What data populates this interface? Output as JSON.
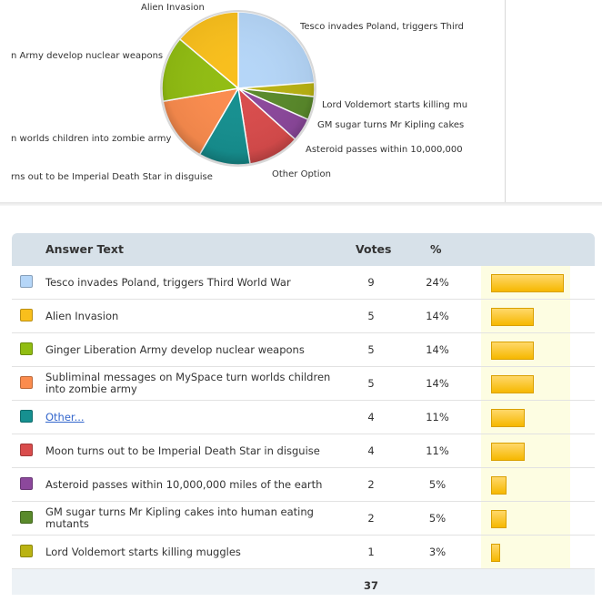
{
  "chart_data": {
    "type": "pie",
    "slices": [
      {
        "label": "Tesco invades Poland, triggers Third",
        "value": 24,
        "color": "#b5d6f8"
      },
      {
        "label": "Lord Voldemort starts killing mu",
        "value": 3,
        "color": "#bab313"
      },
      {
        "label": "GM sugar turns Mr Kipling cakes",
        "value": 5,
        "color": "#5a8a2b"
      },
      {
        "label": "Asteroid passes within 10,000,000",
        "value": 5,
        "color": "#8c489c"
      },
      {
        "label": "",
        "value": 11,
        "color": "#d94c4c"
      },
      {
        "label": "Other Option",
        "value": 11,
        "color": "#169090"
      },
      {
        "label": "rns out to be Imperial Death Star in disguise",
        "value": 14,
        "color": "#fb8c4e"
      },
      {
        "label": "n worlds children into zombie army",
        "value": 14,
        "color": "#91bd12"
      },
      {
        "label": "Alien Invasion",
        "value": 14,
        "color": "#f9bf1c"
      }
    ],
    "left_labels": [
      "n Army develop nuclear weapons"
    ]
  },
  "table": {
    "headers": {
      "answer": "Answer Text",
      "votes": "Votes",
      "pct": "%"
    },
    "rows": [
      {
        "color": "#b5d6f8",
        "answer": "Tesco invades Poland, triggers Third World War",
        "votes": "9",
        "pct": "24%",
        "bar": 0.24,
        "link": false
      },
      {
        "color": "#f9bf1c",
        "answer": "Alien Invasion",
        "votes": "5",
        "pct": "14%",
        "bar": 0.14,
        "link": false
      },
      {
        "color": "#91bd12",
        "answer": "Ginger Liberation Army develop nuclear weapons",
        "votes": "5",
        "pct": "14%",
        "bar": 0.14,
        "link": false
      },
      {
        "color": "#fb8c4e",
        "answer": "Subliminal messages on MySpace turn worlds children into zombie army",
        "votes": "5",
        "pct": "14%",
        "bar": 0.14,
        "link": false
      },
      {
        "color": "#169090",
        "answer": "Other...",
        "votes": "4",
        "pct": "11%",
        "bar": 0.11,
        "link": true
      },
      {
        "color": "#d94c4c",
        "answer": "Moon turns out to be Imperial Death Star in disguise",
        "votes": "4",
        "pct": "11%",
        "bar": 0.11,
        "link": false
      },
      {
        "color": "#8c489c",
        "answer": "Asteroid passes within 10,000,000 miles of the earth",
        "votes": "2",
        "pct": "5%",
        "bar": 0.05,
        "link": false
      },
      {
        "color": "#5a8a2b",
        "answer": "GM sugar turns Mr Kipling cakes into human eating mutants",
        "votes": "2",
        "pct": "5%",
        "bar": 0.05,
        "link": false
      },
      {
        "color": "#bab313",
        "answer": "Lord Voldemort starts killing muggles",
        "votes": "1",
        "pct": "3%",
        "bar": 0.03,
        "link": false
      }
    ],
    "total_votes": "37"
  }
}
